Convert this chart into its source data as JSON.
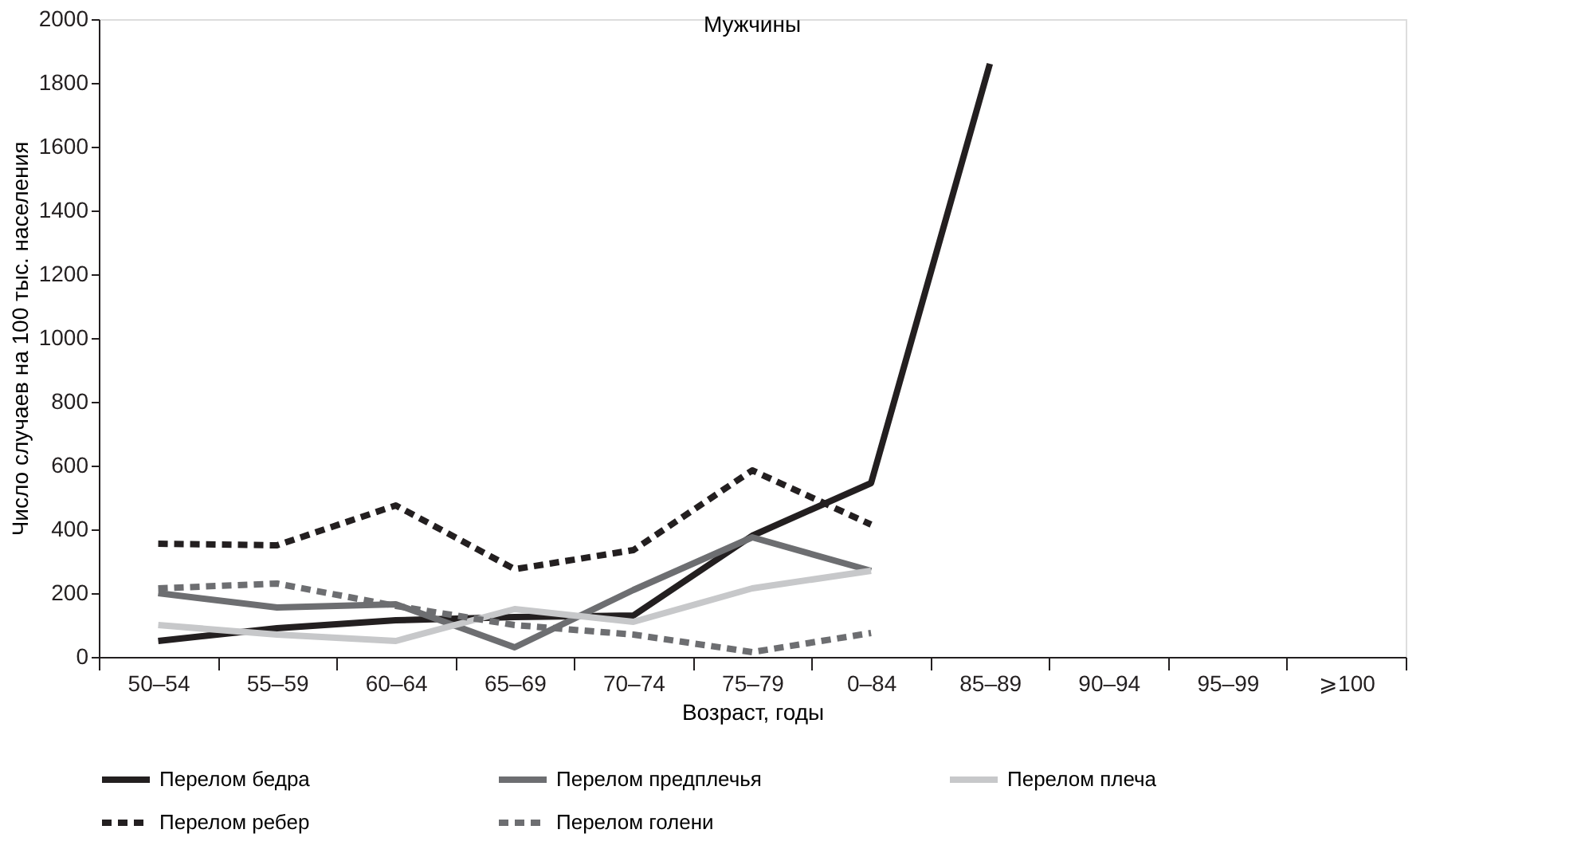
{
  "chart_data": {
    "type": "line",
    "title": "Мужчины",
    "xlabel": "Возраст, годы",
    "ylabel": "Число случаев на 100 тыс. населения",
    "categories": [
      "50–54",
      "55–59",
      "60–64",
      "65–69",
      "70–74",
      "75–79",
      "0–84",
      "85–89",
      "90–94",
      "95–99",
      "⩾100"
    ],
    "ylim": [
      0,
      2000
    ],
    "yticks": [
      0,
      200,
      400,
      600,
      800,
      1000,
      1200,
      1400,
      1600,
      1800,
      2000
    ],
    "grid": false,
    "legend": "bottom",
    "marker": "none",
    "series": [
      {
        "name": "Перелом бедра",
        "color": "#231f20",
        "line_style": "solid",
        "values": [
          50,
          90,
          115,
          125,
          130,
          380,
          545,
          1860,
          null,
          null,
          null
        ]
      },
      {
        "name": "Перелом предплечья",
        "color": "#6d6e71",
        "line_style": "solid",
        "values": [
          200,
          155,
          165,
          30,
          210,
          375,
          270,
          null,
          null,
          null,
          null
        ]
      },
      {
        "name": "Перелом плеча",
        "color": "#c7c8ca",
        "line_style": "solid",
        "values": [
          100,
          70,
          50,
          150,
          110,
          215,
          270,
          null,
          null,
          null,
          null
        ]
      },
      {
        "name": "Перелом ребер",
        "color": "#231f20",
        "line_style": "dashed",
        "values": [
          355,
          350,
          475,
          275,
          335,
          585,
          415,
          null,
          null,
          null,
          null
        ]
      },
      {
        "name": "Перелом голени",
        "color": "#6d6e71",
        "line_style": "dashed",
        "values": [
          215,
          230,
          160,
          100,
          70,
          15,
          75,
          null,
          null,
          null,
          null
        ]
      }
    ]
  }
}
